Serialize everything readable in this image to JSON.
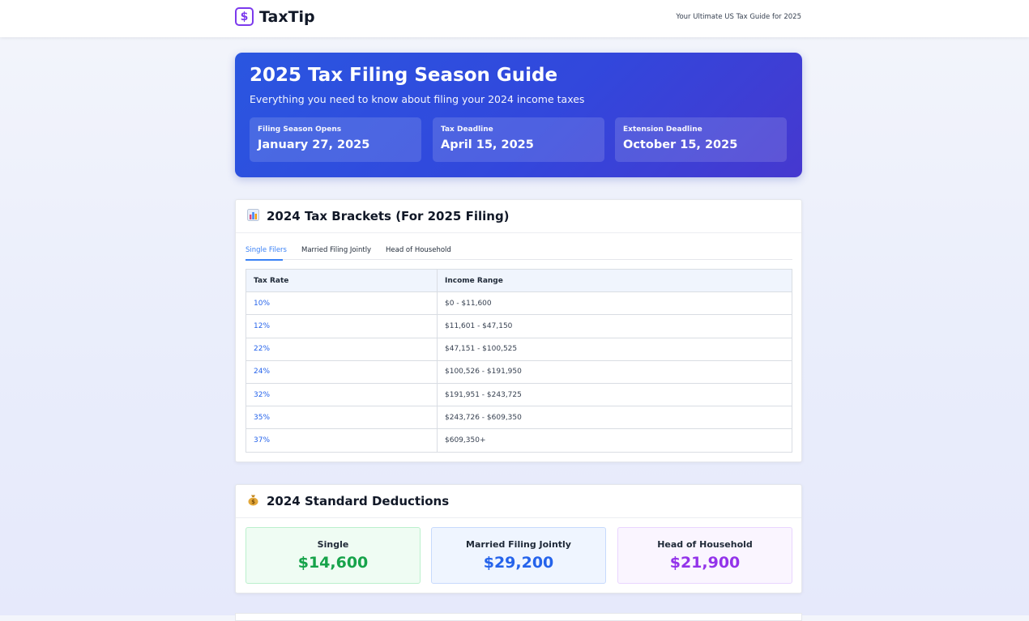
{
  "header": {
    "logo_symbol": "$",
    "brand": "TaxTip",
    "tagline": "Your Ultimate US Tax Guide for 2025"
  },
  "hero": {
    "title": "2025 Tax Filing Season Guide",
    "subtitle": "Everything you need to know about filing your 2024 income taxes",
    "dates": [
      {
        "label": "Filing Season Opens",
        "value": "January 27, 2025"
      },
      {
        "label": "Tax Deadline",
        "value": "April 15, 2025"
      },
      {
        "label": "Extension Deadline",
        "value": "October 15, 2025"
      }
    ]
  },
  "brackets": {
    "icon": "bar-chart-icon",
    "title": "2024 Tax Brackets (For 2025 Filing)",
    "tabs": [
      {
        "label": "Single Filers",
        "active": true
      },
      {
        "label": "Married Filing Jointly",
        "active": false
      },
      {
        "label": "Head of Household",
        "active": false
      }
    ],
    "columns": [
      "Tax Rate",
      "Income Range"
    ],
    "rows": [
      {
        "rate": "10%",
        "range": "$0 - $11,600"
      },
      {
        "rate": "12%",
        "range": "$11,601 - $47,150"
      },
      {
        "rate": "22%",
        "range": "$47,151 - $100,525"
      },
      {
        "rate": "24%",
        "range": "$100,526 - $191,950"
      },
      {
        "rate": "32%",
        "range": "$191,951 - $243,725"
      },
      {
        "rate": "35%",
        "range": "$243,726 - $609,350"
      },
      {
        "rate": "37%",
        "range": "$609,350+"
      }
    ],
    "rate_color": "#2563eb"
  },
  "deductions": {
    "icon": "money-bag-icon",
    "title": "2024 Standard Deductions",
    "items": [
      {
        "label": "Single",
        "amount": "$14,600",
        "color": "#16a34a",
        "bg": "#effcf3",
        "border": "#bbf0cd"
      },
      {
        "label": "Married Filing Jointly",
        "amount": "$29,200",
        "color": "#2563eb",
        "bg": "#eff5ff",
        "border": "#c7dafc"
      },
      {
        "label": "Head of Household",
        "amount": "$21,900",
        "color": "#9333ea",
        "bg": "#faf5ff",
        "border": "#e9d5ff"
      }
    ]
  },
  "colors": {
    "accent": "#3b82f6",
    "brand": "#7c3aed"
  }
}
